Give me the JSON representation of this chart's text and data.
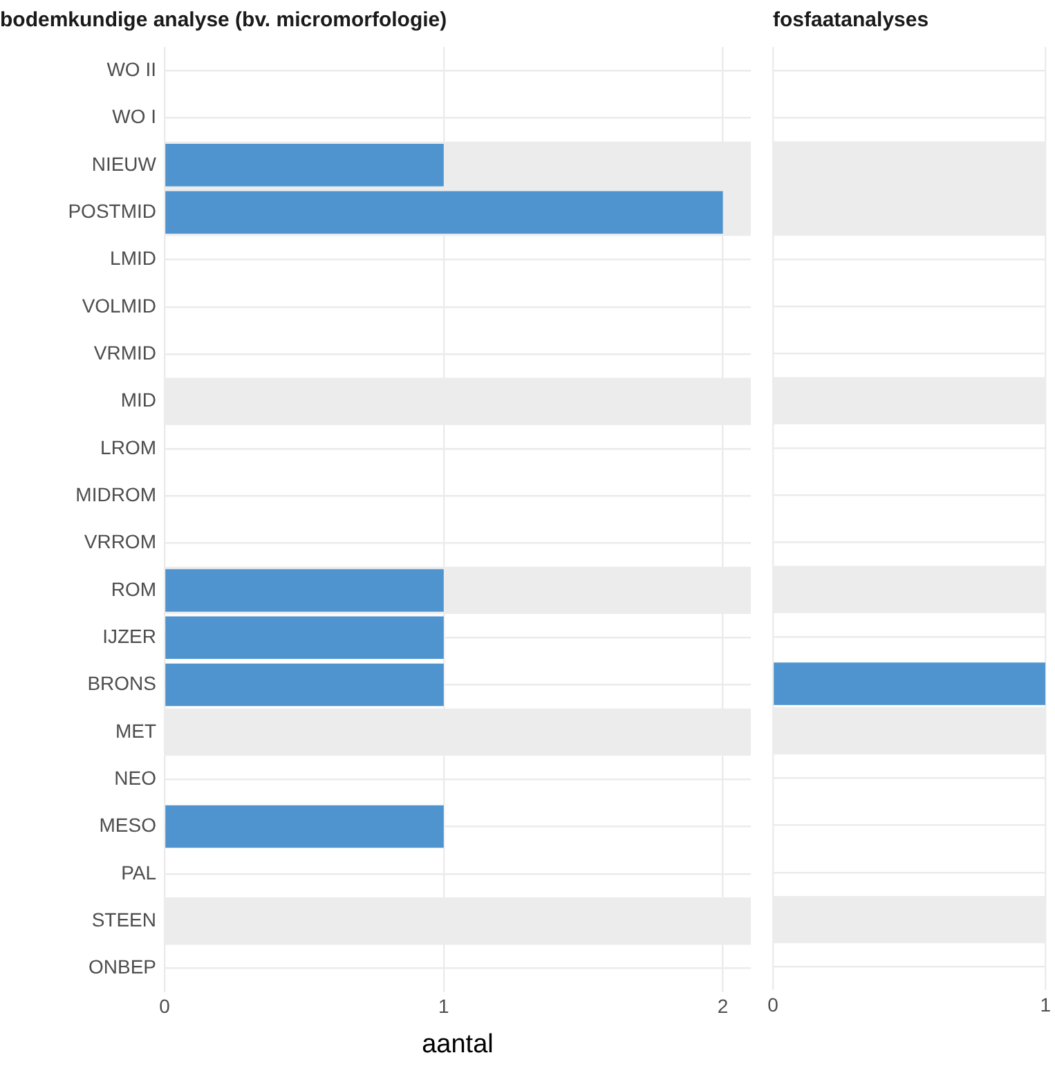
{
  "chart_data": [
    {
      "type": "bar",
      "orientation": "horizontal",
      "title": "bodemkundige analyse (bv. micromorfologie)",
      "xlabel": "aantal",
      "categories": [
        "WO II",
        "WO I",
        "NIEUW",
        "POSTMID",
        "LMID",
        "VOLMID",
        "VRMID",
        "MID",
        "LROM",
        "MIDROM",
        "VRROM",
        "ROM",
        "IJZER",
        "BRONS",
        "MET",
        "NEO",
        "MESO",
        "PAL",
        "STEEN",
        "ONBEP"
      ],
      "values": [
        0,
        0,
        1,
        2,
        0,
        0,
        0,
        0,
        0,
        0,
        0,
        1,
        1,
        1,
        0,
        0,
        1,
        0,
        0,
        0
      ],
      "color": "#4f94cf",
      "xlim": [
        0,
        2.1
      ],
      "xticks": [
        0,
        1,
        2
      ],
      "grid": true,
      "bands": [
        {
          "axis": "y",
          "from": "NIEUW",
          "to": "POSTMID",
          "color": "#ececec"
        },
        {
          "axis": "y",
          "from": "MID",
          "to": "MID",
          "color": "#ececec"
        },
        {
          "axis": "y",
          "from": "ROM",
          "to": "ROM",
          "color": "#ececec"
        },
        {
          "axis": "y",
          "from": "MET",
          "to": "MET",
          "color": "#ececec"
        },
        {
          "axis": "y",
          "from": "STEEN",
          "to": "STEEN",
          "color": "#ececec"
        }
      ]
    },
    {
      "type": "bar",
      "orientation": "horizontal",
      "title": "fosfaatanalyses",
      "categories": [
        "WO II",
        "WO I",
        "NIEUW",
        "POSTMID",
        "LMID",
        "VOLMID",
        "VRMID",
        "MID",
        "LROM",
        "MIDROM",
        "VRROM",
        "ROM",
        "IJZER",
        "BRONS",
        "MET",
        "NEO",
        "MESO",
        "PAL",
        "STEEN",
        "ONBEP"
      ],
      "values": [
        0,
        0,
        0,
        0,
        0,
        0,
        0,
        0,
        0,
        0,
        0,
        0,
        0,
        1,
        0,
        0,
        0,
        0,
        0,
        0
      ],
      "color": "#4f94cf",
      "xlim": [
        0,
        1
      ],
      "xticks": [
        0,
        1
      ],
      "grid": true,
      "tick_labels": "x",
      "bands": [
        {
          "axis": "y",
          "from": "NIEUW",
          "to": "POSTMID",
          "color": "#ececec"
        },
        {
          "axis": "y",
          "from": "MID",
          "to": "MID",
          "color": "#ececec"
        },
        {
          "axis": "y",
          "from": "ROM",
          "to": "ROM",
          "color": "#ececec"
        },
        {
          "axis": "y",
          "from": "MET",
          "to": "MET",
          "color": "#ececec"
        },
        {
          "axis": "y",
          "from": "STEEN",
          "to": "STEEN",
          "color": "#ececec"
        }
      ]
    }
  ]
}
